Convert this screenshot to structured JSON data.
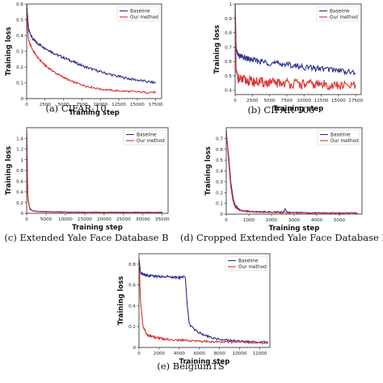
{
  "colors": {
    "baseline": "#2b2f8c",
    "ours": "#d93030",
    "axis": "#222222"
  },
  "chart_data": [
    {
      "type": "line",
      "caption": "(a) CIFAR-10",
      "xlabel": "Training step",
      "ylabel": "Training loss",
      "xlim": [
        0,
        18300
      ],
      "ylim": [
        0,
        0.6
      ],
      "xticks": [
        0,
        2500,
        5000,
        7500,
        10000,
        12500,
        15000,
        17500
      ],
      "yticks": [
        0,
        0.1,
        0.2,
        0.3,
        0.4,
        0.5,
        0.6
      ],
      "legend": "top-right",
      "series": [
        {
          "name": "Baseline",
          "color": "baseline",
          "noise": 0.008,
          "x": [
            0,
            250,
            800,
            1500,
            2500,
            4000,
            6000,
            8000,
            10000,
            12000,
            14000,
            16000,
            17500
          ],
          "y": [
            0.6,
            0.44,
            0.38,
            0.35,
            0.32,
            0.28,
            0.24,
            0.2,
            0.17,
            0.145,
            0.125,
            0.11,
            0.1
          ]
        },
        {
          "name": "Our method",
          "color": "ours",
          "noise": 0.006,
          "x": [
            0,
            250,
            800,
            1500,
            2500,
            4000,
            6000,
            8000,
            10000,
            12000,
            14000,
            16000,
            17500
          ],
          "y": [
            0.55,
            0.37,
            0.31,
            0.26,
            0.21,
            0.16,
            0.11,
            0.08,
            0.06,
            0.05,
            0.045,
            0.04,
            0.04
          ]
        }
      ]
    },
    {
      "type": "line",
      "caption": "(b) CIFAR-100",
      "xlabel": "Training step",
      "ylabel": "Training loss",
      "xlim": [
        0,
        18300
      ],
      "ylim": [
        0.37,
        1.0
      ],
      "xticks": [
        0,
        2500,
        5000,
        7500,
        10000,
        12500,
        15000,
        17500
      ],
      "yticks": [
        0.4,
        0.5,
        0.6,
        0.7,
        0.8,
        0.9,
        1.0
      ],
      "legend": "top-right",
      "series": [
        {
          "name": "Baseline",
          "color": "baseline",
          "noise": 0.02,
          "x": [
            0,
            150,
            500,
            1000,
            2500,
            5000,
            7500,
            10000,
            12500,
            15000,
            17500
          ],
          "y": [
            1.0,
            0.68,
            0.64,
            0.63,
            0.61,
            0.59,
            0.58,
            0.56,
            0.55,
            0.54,
            0.52
          ]
        },
        {
          "name": "Our method",
          "color": "ours",
          "noise": 0.035,
          "x": [
            0,
            150,
            500,
            1000,
            2500,
            5000,
            7500,
            10000,
            12500,
            15000,
            17500
          ],
          "y": [
            0.95,
            0.52,
            0.48,
            0.47,
            0.46,
            0.45,
            0.45,
            0.44,
            0.44,
            0.43,
            0.43
          ]
        }
      ]
    },
    {
      "type": "line",
      "caption": "(c) Extended Yale Face Database B",
      "xlabel": "Training step",
      "ylabel": "Training loss",
      "xlim": [
        0,
        36500
      ],
      "ylim": [
        0,
        1.6
      ],
      "xticks": [
        0,
        5000,
        10000,
        15000,
        20000,
        25000,
        30000,
        35000
      ],
      "yticks": [
        0,
        0.2,
        0.4,
        0.6,
        0.8,
        1.0,
        1.2,
        1.4
      ],
      "legend": "top-right",
      "series": [
        {
          "name": "Baseline",
          "color": "baseline",
          "noise": 0.004,
          "x": [
            0,
            300,
            800,
            1500,
            3000,
            6000,
            10000,
            20000,
            35000
          ],
          "y": [
            1.5,
            0.3,
            0.09,
            0.05,
            0.035,
            0.03,
            0.025,
            0.02,
            0.02
          ]
        },
        {
          "name": "Our method",
          "color": "ours",
          "noise": 0.004,
          "x": [
            0,
            300,
            800,
            1500,
            3000,
            6000,
            10000,
            20000,
            35000
          ],
          "y": [
            1.55,
            0.28,
            0.08,
            0.045,
            0.03,
            0.025,
            0.02,
            0.018,
            0.015
          ]
        }
      ]
    },
    {
      "type": "line",
      "caption": "(d) Cropped Extended Yale Face Database B",
      "xlabel": "Training step",
      "ylabel": "Training loss",
      "xlim": [
        0,
        6000
      ],
      "ylim": [
        0,
        0.8
      ],
      "xticks": [
        0,
        1000,
        2000,
        3000,
        4000,
        5000
      ],
      "yticks": [
        0,
        0.1,
        0.2,
        0.3,
        0.4,
        0.5,
        0.6,
        0.7
      ],
      "legend": "top-right",
      "series": [
        {
          "name": "Baseline",
          "color": "baseline",
          "noise": 0.005,
          "x": [
            0,
            100,
            200,
            300,
            400,
            600,
            800,
            1200,
            2000,
            2500,
            2600,
            2700,
            3000,
            4000,
            5000,
            5800
          ],
          "y": [
            0.75,
            0.55,
            0.3,
            0.15,
            0.08,
            0.04,
            0.03,
            0.025,
            0.02,
            0.02,
            0.045,
            0.02,
            0.015,
            0.012,
            0.01,
            0.01
          ]
        },
        {
          "name": "Our method",
          "color": "ours",
          "noise": 0.005,
          "x": [
            0,
            100,
            200,
            300,
            400,
            600,
            800,
            1200,
            2000,
            3000,
            4000,
            5000,
            5800
          ],
          "y": [
            0.78,
            0.5,
            0.25,
            0.12,
            0.06,
            0.035,
            0.025,
            0.02,
            0.015,
            0.012,
            0.01,
            0.01,
            0.01
          ]
        }
      ]
    },
    {
      "type": "line",
      "caption": "(e) BelgiumTS",
      "xlabel": "Training step",
      "ylabel": "Training loss",
      "xlim": [
        0,
        13000
      ],
      "ylim": [
        0,
        0.9
      ],
      "xticks": [
        0,
        2000,
        4000,
        6000,
        8000,
        10000,
        12000
      ],
      "yticks": [
        0,
        0.2,
        0.4,
        0.6,
        0.8
      ],
      "legend": "top-right",
      "series": [
        {
          "name": "Baseline",
          "color": "baseline",
          "noise": 0.012,
          "x": [
            0,
            150,
            400,
            1000,
            2000,
            3000,
            4000,
            4600,
            4800,
            5000,
            5500,
            6000,
            7000,
            8000,
            9000,
            10000,
            11000,
            12000,
            12800
          ],
          "y": [
            0.85,
            0.72,
            0.7,
            0.69,
            0.68,
            0.68,
            0.67,
            0.68,
            0.4,
            0.22,
            0.17,
            0.14,
            0.1,
            0.08,
            0.07,
            0.06,
            0.055,
            0.05,
            0.05
          ]
        },
        {
          "name": "Our method",
          "color": "ours",
          "noise": 0.01,
          "x": [
            0,
            150,
            400,
            800,
            1500,
            2500,
            4000,
            6000,
            8000,
            10000,
            12000,
            12800
          ],
          "y": [
            0.85,
            0.45,
            0.2,
            0.12,
            0.1,
            0.08,
            0.07,
            0.06,
            0.055,
            0.05,
            0.045,
            0.045
          ]
        }
      ]
    }
  ]
}
